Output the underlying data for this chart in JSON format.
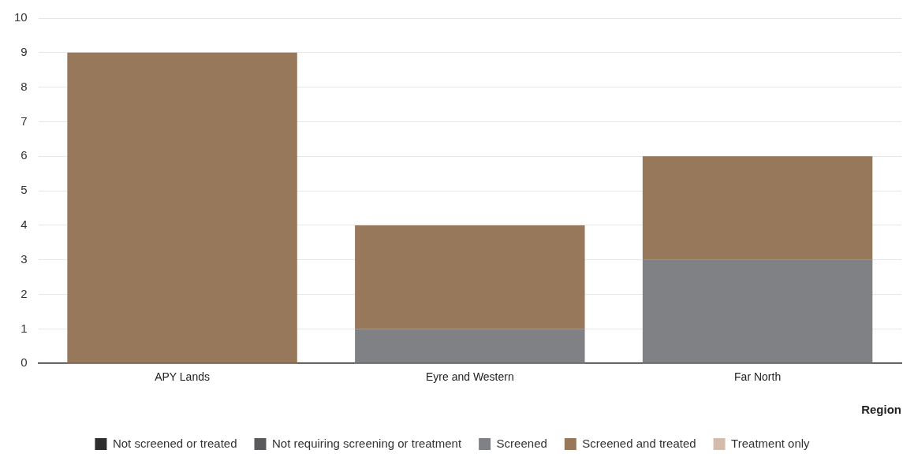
{
  "chart_data": {
    "type": "bar",
    "stacked": true,
    "xlabel": "Region",
    "categories": [
      "APY Lands",
      "Eyre and Western",
      "Far North"
    ],
    "series": [
      {
        "name": "Not screened or treated",
        "color": "#2e2e2e",
        "values": [
          0,
          0,
          0
        ]
      },
      {
        "name": "Not requiring screening or treatment",
        "color": "#5a5a5c",
        "values": [
          0,
          0,
          0
        ]
      },
      {
        "name": "Screened",
        "color": "#808184",
        "values": [
          0,
          1,
          3
        ]
      },
      {
        "name": "Screened and treated",
        "color": "#98785a",
        "values": [
          9,
          3,
          3
        ]
      },
      {
        "name": "Treatment only",
        "color": "#d3bcab",
        "values": [
          0,
          0,
          0
        ]
      }
    ],
    "ylim": [
      0,
      10
    ],
    "yticks": [
      0,
      1,
      2,
      3,
      4,
      5,
      6,
      7,
      8,
      9,
      10
    ],
    "grid": "y",
    "legend": "bottom"
  }
}
